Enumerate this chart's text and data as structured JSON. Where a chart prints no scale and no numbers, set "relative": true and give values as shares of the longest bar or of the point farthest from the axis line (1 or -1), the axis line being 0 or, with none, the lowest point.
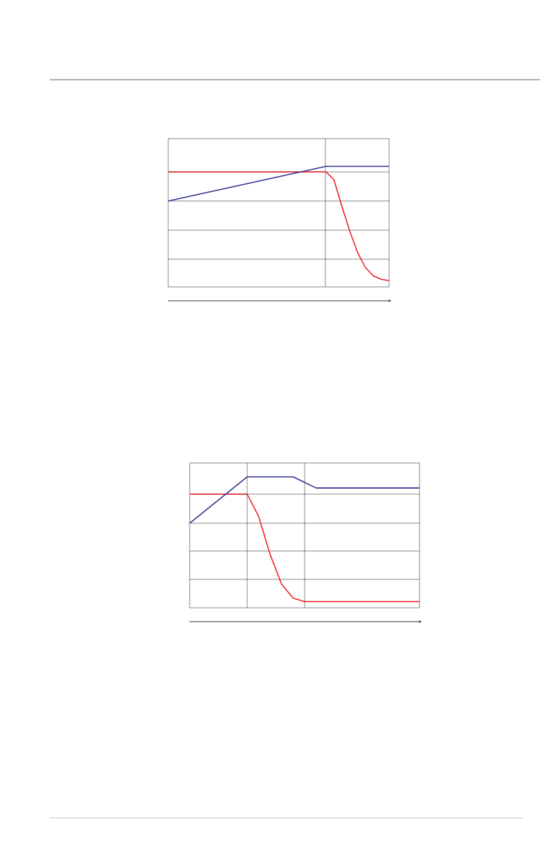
{
  "chart_data": [
    {
      "type": "line",
      "relative": true,
      "categories": [
        null,
        null,
        null,
        null,
        null,
        null,
        null,
        null,
        null,
        null,
        null,
        null,
        null,
        null,
        null,
        null,
        null,
        null,
        null,
        null,
        null,
        null,
        null,
        null,
        null,
        null,
        null,
        null,
        null
      ],
      "series": [
        {
          "color": "#ed1c24",
          "values": [
            0.954,
            0.954,
            0.954,
            0.954,
            0.954,
            0.954,
            0.954,
            0.954,
            0.954,
            0.954,
            0.954,
            0.954,
            0.954,
            0.954,
            0.954,
            0.954,
            0.954,
            0.954,
            0.954,
            0.954,
            0.954,
            0.891,
            0.672,
            0.466,
            0.287,
            0.161,
            0.092,
            0.063,
            0.052
          ]
        },
        {
          "color": "#2e3192",
          "values": [
            0.713,
            0.727,
            0.742,
            0.756,
            0.77,
            0.785,
            0.799,
            0.813,
            0.828,
            0.842,
            0.857,
            0.871,
            0.885,
            0.9,
            0.914,
            0.928,
            0.943,
            0.957,
            0.971,
            0.986,
            1.0,
            1.0,
            1.0,
            1.0,
            1.0,
            1.0,
            1.0,
            1.0,
            1.0
          ]
        }
      ],
      "ref_lines": [
        {
          "axis": "y",
          "value": 0.954,
          "color": "#333333"
        },
        {
          "axis": "y",
          "value": 0.713,
          "color": "#333333"
        },
        {
          "axis": "y",
          "value": 0.471,
          "color": "#333333"
        },
        {
          "axis": "y",
          "value": 0.23,
          "color": "#333333"
        }
      ]
    },
    {
      "type": "line",
      "relative": true,
      "categories": [
        null,
        null,
        null,
        null,
        null,
        null,
        null,
        null,
        null,
        null,
        null,
        null,
        null,
        null,
        null,
        null,
        null,
        null,
        null,
        null,
        null
      ],
      "series": [
        {
          "color": "#ed1c24",
          "values": [
            0.868,
            0.868,
            0.868,
            0.868,
            0.868,
            0.868,
            0.698,
            0.407,
            0.18,
            0.074,
            0.048,
            0.048,
            0.048,
            0.048,
            0.048,
            0.048,
            0.048,
            0.048,
            0.048,
            0.048,
            0.048
          ]
        },
        {
          "color": "#2e3192",
          "values": [
            0.646,
            0.717,
            0.788,
            0.858,
            0.929,
            1.0,
            1.0,
            1.0,
            1.0,
            1.0,
            0.958,
            0.915,
            0.915,
            0.915,
            0.915,
            0.915,
            0.915,
            0.915,
            0.915,
            0.915,
            0.915
          ]
        }
      ],
      "ref_lines": [
        {
          "axis": "y",
          "value": 0.868,
          "color": "#333333"
        },
        {
          "axis": "y",
          "value": 0.646,
          "color": "#333333"
        },
        {
          "axis": "y",
          "value": 0.434,
          "color": "#333333"
        },
        {
          "axis": "y",
          "value": 0.217,
          "color": "#333333"
        }
      ]
    }
  ]
}
